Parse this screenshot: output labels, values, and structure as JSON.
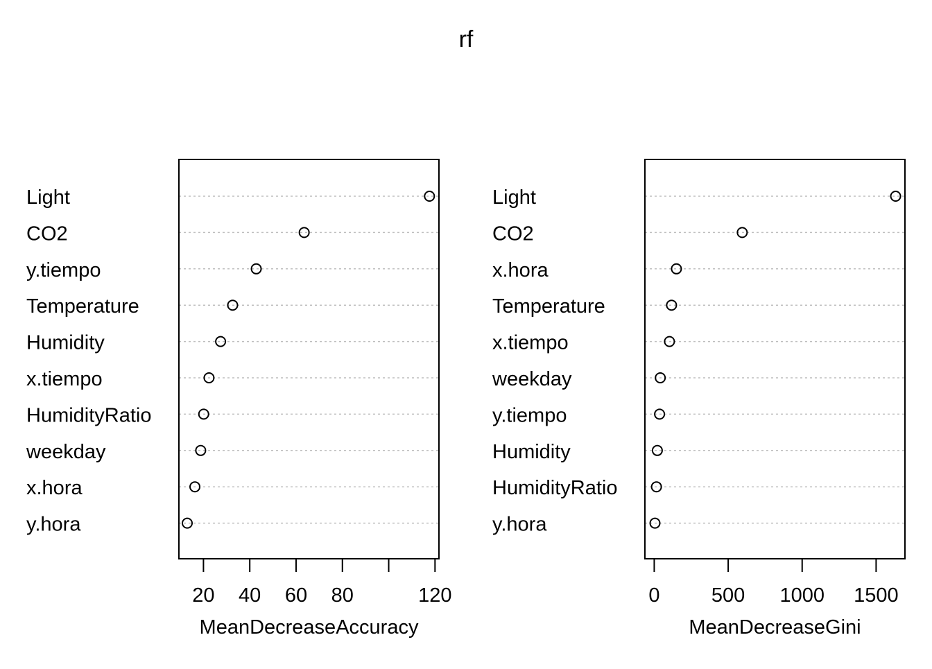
{
  "title": "rf",
  "chart_data": [
    {
      "type": "scatter",
      "title": "",
      "xlabel": "MeanDecreaseAccuracy",
      "ylabel": "",
      "xlim": [
        9.4,
        121.7
      ],
      "ticks": [
        20,
        40,
        60,
        80,
        100,
        120
      ],
      "tick_labels": [
        "20",
        "40",
        "60",
        "80",
        "",
        "120"
      ],
      "grid": "dotted horizontal",
      "categories": [
        "Light",
        "CO2",
        "y.tiempo",
        "Temperature",
        "Humidity",
        "x.tiempo",
        "HumidityRatio",
        "weekday",
        "x.hora",
        "y.hora"
      ],
      "values": [
        117.6,
        63.5,
        42.8,
        32.6,
        27.4,
        22.4,
        20.1,
        18.8,
        16.3,
        13.0
      ]
    },
    {
      "type": "scatter",
      "title": "",
      "xlabel": "MeanDecreaseGini",
      "ylabel": "",
      "xlim": [
        -63,
        1695
      ],
      "ticks": [
        0,
        500,
        1000,
        1500
      ],
      "tick_labels": [
        "0",
        "500",
        "1000",
        "1500"
      ],
      "grid": "dotted horizontal",
      "categories": [
        "Light",
        "CO2",
        "x.hora",
        "Temperature",
        "x.tiempo",
        "weekday",
        "y.tiempo",
        "Humidity",
        "HumidityRatio",
        "y.hora"
      ],
      "values": [
        1632,
        595,
        150,
        117,
        103,
        41,
        36,
        21,
        15,
        5
      ]
    }
  ]
}
